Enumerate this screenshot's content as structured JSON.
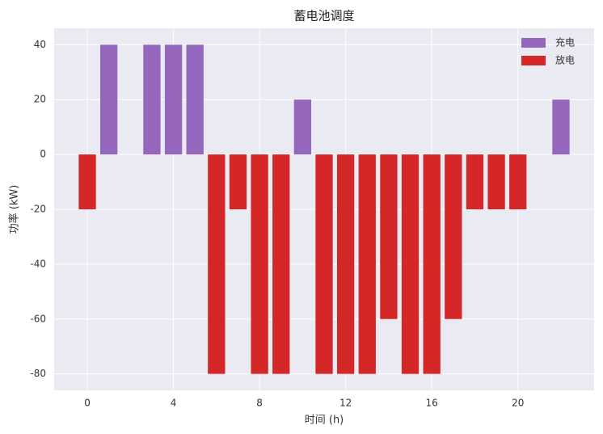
{
  "chart_data": {
    "type": "bar",
    "title": "蓄电池调度",
    "xlabel": "时间 (h)",
    "ylabel": "功率 (kW)",
    "x": [
      0,
      1,
      2,
      3,
      4,
      5,
      6,
      7,
      8,
      9,
      10,
      11,
      12,
      13,
      14,
      15,
      16,
      17,
      18,
      19,
      20,
      21,
      22
    ],
    "series": [
      {
        "name": "充电",
        "color": "#9467bd",
        "values": [
          null,
          40,
          null,
          40,
          40,
          40,
          null,
          null,
          null,
          null,
          20,
          null,
          null,
          null,
          null,
          null,
          null,
          null,
          null,
          null,
          null,
          null,
          20
        ]
      },
      {
        "name": "放电",
        "color": "#d62728",
        "values": [
          -20,
          null,
          null,
          null,
          null,
          null,
          -80,
          -20,
          -80,
          -80,
          null,
          -80,
          -80,
          -80,
          -60,
          -80,
          -80,
          -60,
          -20,
          -20,
          -20,
          null,
          null
        ]
      }
    ],
    "xlim": [
      -1.54,
      23.54
    ],
    "xticks": [
      0,
      4,
      8,
      12,
      16,
      20
    ],
    "ylim": [
      -86,
      46
    ],
    "yticks": [
      -80,
      -60,
      -40,
      -20,
      0,
      20,
      40
    ],
    "grid": true,
    "legend": "upper-right"
  }
}
